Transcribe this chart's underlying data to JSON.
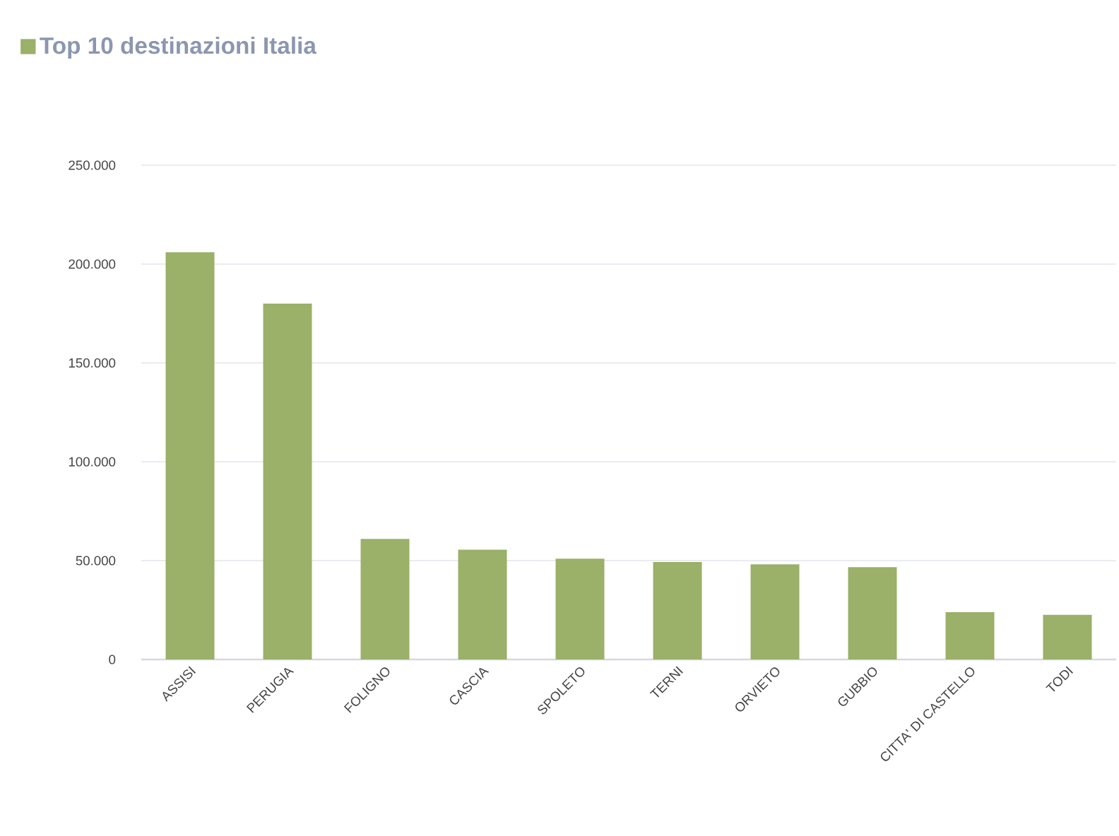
{
  "chart_data": {
    "type": "bar",
    "categories": [
      "ASSISI",
      "PERUGIA",
      "FOLIGNO",
      "CASCIA",
      "SPOLETO",
      "TERNI",
      "ORVIETO",
      "GUBBIO",
      "CITTA' DI CASTELLO",
      "TODI"
    ],
    "series": [
      {
        "name": "Top 10 destinazioni Italia",
        "color": "#9bb068",
        "values": [
          206000,
          180000,
          61000,
          55500,
          51000,
          49300,
          48100,
          46700,
          23900,
          22600
        ]
      }
    ],
    "ylim": [
      0,
      250000
    ],
    "yticks": [
      {
        "value": 0,
        "label": "0"
      },
      {
        "value": 50000,
        "label": "50.000"
      },
      {
        "value": 100000,
        "label": "100.000"
      },
      {
        "value": 150000,
        "label": "150.000"
      },
      {
        "value": 200000,
        "label": "200.000"
      },
      {
        "value": 250000,
        "label": "250.000"
      }
    ],
    "grid": "y",
    "legend": "top left"
  }
}
